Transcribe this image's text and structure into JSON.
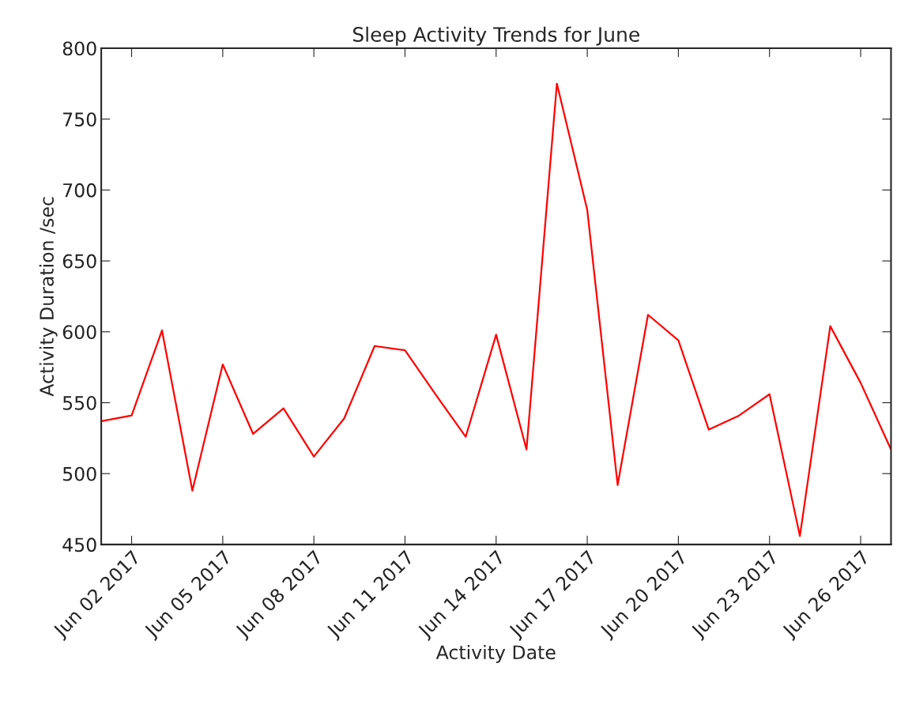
{
  "chart_data": {
    "type": "line",
    "title": "Sleep Activity Trends for June",
    "xlabel": "Activity Date",
    "ylabel": "Activity Duration /sec",
    "x": [
      "2017-06-01",
      "2017-06-02",
      "2017-06-03",
      "2017-06-04",
      "2017-06-05",
      "2017-06-06",
      "2017-06-07",
      "2017-06-08",
      "2017-06-09",
      "2017-06-10",
      "2017-06-11",
      "2017-06-12",
      "2017-06-13",
      "2017-06-14",
      "2017-06-15",
      "2017-06-16",
      "2017-06-17",
      "2017-06-18",
      "2017-06-19",
      "2017-06-20",
      "2017-06-21",
      "2017-06-22",
      "2017-06-23",
      "2017-06-24",
      "2017-06-25",
      "2017-06-26",
      "2017-06-27"
    ],
    "series": [
      {
        "color": "#ff0000",
        "values": [
          537,
          541,
          601,
          488,
          577,
          528,
          546,
          512,
          539,
          590,
          587,
          556,
          526,
          598,
          517,
          775,
          686,
          492,
          612,
          594,
          531,
          541,
          556,
          456,
          604,
          564,
          517
        ]
      }
    ],
    "xlim": [
      "2017-06-01",
      "2017-06-27"
    ],
    "xticks": [
      {
        "value": "2017-06-02",
        "label": "Jun 02 2017"
      },
      {
        "value": "2017-06-05",
        "label": "Jun 05 2017"
      },
      {
        "value": "2017-06-08",
        "label": "Jun 08 2017"
      },
      {
        "value": "2017-06-11",
        "label": "Jun 11 2017"
      },
      {
        "value": "2017-06-14",
        "label": "Jun 14 2017"
      },
      {
        "value": "2017-06-17",
        "label": "Jun 17 2017"
      },
      {
        "value": "2017-06-20",
        "label": "Jun 20 2017"
      },
      {
        "value": "2017-06-23",
        "label": "Jun 23 2017"
      },
      {
        "value": "2017-06-26",
        "label": "Jun 26 2017"
      }
    ],
    "ylim": [
      450,
      800
    ],
    "yticks": [
      450,
      500,
      550,
      600,
      650,
      700,
      750,
      800
    ],
    "grid": false,
    "line_style": "solid",
    "marker": "none",
    "legend": false
  }
}
